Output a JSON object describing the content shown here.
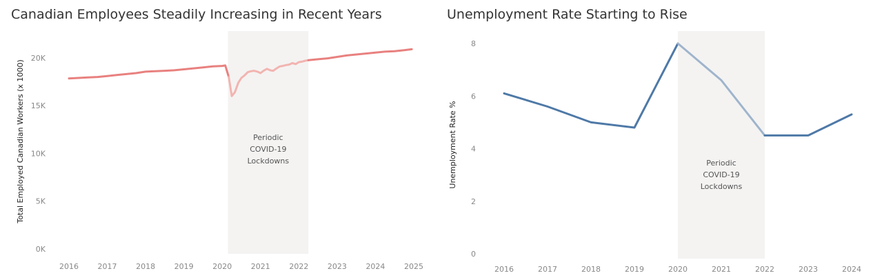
{
  "chart_data": [
    {
      "type": "line",
      "title": "Canadian Employees Steadily Increasing in Recent Years",
      "xlabel": "",
      "ylabel": "Total Employed Canadian Workers (x 1000)",
      "x_ticks": [
        "2016",
        "2017",
        "2018",
        "2019",
        "2020",
        "2021",
        "2022",
        "2023",
        "2024",
        "2025"
      ],
      "y_ticks": [
        "0K",
        "5K",
        "10K",
        "15K",
        "20K"
      ],
      "xlim": [
        2016,
        2025
      ],
      "ylim": [
        0,
        21000
      ],
      "grid": false,
      "shaded_region": {
        "x0": 2020.15,
        "x1": 2022.25,
        "label": "Periodic COVID-19 Lockdowns"
      },
      "series": [
        {
          "color": "#e8817f",
          "highlight_color": "#f2b4b0",
          "x": [
            2016.0,
            2016.25,
            2016.5,
            2016.75,
            2017.0,
            2017.25,
            2017.5,
            2017.75,
            2018.0,
            2018.25,
            2018.5,
            2018.75,
            2019.0,
            2019.25,
            2019.5,
            2019.75,
            2020.0,
            2020.08,
            2020.17,
            2020.25,
            2020.33,
            2020.42,
            2020.5,
            2020.58,
            2020.67,
            2020.75,
            2020.83,
            2020.92,
            2021.0,
            2021.08,
            2021.17,
            2021.25,
            2021.33,
            2021.42,
            2021.5,
            2021.58,
            2021.67,
            2021.75,
            2021.83,
            2021.92,
            2022.0,
            2022.08,
            2022.17,
            2022.25,
            2022.5,
            2022.75,
            2023.0,
            2023.25,
            2023.5,
            2023.75,
            2024.0,
            2024.25,
            2024.5,
            2024.75,
            2024.95
          ],
          "y": [
            17850,
            17900,
            17950,
            18000,
            18100,
            18200,
            18300,
            18400,
            18550,
            18600,
            18650,
            18700,
            18800,
            18900,
            19000,
            19100,
            19150,
            19200,
            18000,
            16000,
            16400,
            17400,
            17900,
            18150,
            18500,
            18600,
            18650,
            18550,
            18400,
            18650,
            18850,
            18700,
            18650,
            18900,
            19100,
            19150,
            19250,
            19300,
            19450,
            19350,
            19550,
            19600,
            19700,
            19750,
            19850,
            19950,
            20100,
            20250,
            20350,
            20450,
            20550,
            20650,
            20700,
            20800,
            20900
          ]
        }
      ]
    },
    {
      "type": "line",
      "title": "Unemployment Rate Starting to Rise",
      "xlabel": "",
      "ylabel": "Unemployment Rate %",
      "x_ticks": [
        "2016",
        "2017",
        "2018",
        "2019",
        "2020",
        "2021",
        "2022",
        "2023",
        "2024"
      ],
      "y_ticks": [
        "0",
        "2",
        "4",
        "6",
        "8"
      ],
      "xlim": [
        2016,
        2024
      ],
      "ylim": [
        0,
        8
      ],
      "grid": false,
      "shaded_region": {
        "x0": 2020,
        "x1": 2022,
        "label": "Periodic COVID-19 Lockdowns"
      },
      "series": [
        {
          "color": "#4e79a7",
          "highlight_color": "#9fb4cc",
          "x": [
            2016,
            2017,
            2018,
            2019,
            2020,
            2021,
            2022,
            2023,
            2024
          ],
          "y": [
            6.1,
            5.6,
            5.0,
            4.8,
            8.0,
            6.6,
            4.5,
            4.5,
            5.3
          ]
        }
      ]
    }
  ],
  "colors": {
    "shade": "#f4f3f2",
    "tick_text": "#888888",
    "title_text": "#333333"
  }
}
